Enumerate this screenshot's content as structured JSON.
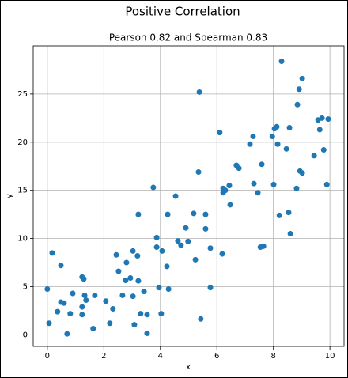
{
  "chart_data": {
    "type": "scatter",
    "title": "Positive Correlation",
    "subtitle": "Pearson 0.82 and Spearman 0.83",
    "xlabel": "x",
    "ylabel": "y",
    "color": "#1f77b4",
    "grid": true,
    "xlim": [
      -0.5,
      10.5
    ],
    "ylim": [
      -1.2,
      30
    ],
    "xticks": [
      0,
      2,
      4,
      6,
      8,
      10
    ],
    "yticks": [
      0,
      5,
      10,
      15,
      20,
      25
    ],
    "x": [
      0,
      0.06,
      0.17,
      0.36,
      0.48,
      0.48,
      0.59,
      0.7,
      0.81,
      0.9,
      1.23,
      1.29,
      1.23,
      1.23,
      1.32,
      1.37,
      1.62,
      1.68,
      2.07,
      2.21,
      2.32,
      2.44,
      2.52,
      2.66,
      2.77,
      2.8,
      2.94,
      3.03,
      3.03,
      3.08,
      3.19,
      3.22,
      3.22,
      3.3,
      3.42,
      3.53,
      3.53,
      3.75,
      3.87,
      3.87,
      3.95,
      4.03,
      4.06,
      4.23,
      4.26,
      4.29,
      4.54,
      4.62,
      4.73,
      4.9,
      4.98,
      5.18,
      5.24,
      5.38,
      5.35,
      5.43,
      5.6,
      5.6,
      5.77,
      5.77,
      6.1,
      6.19,
      6.22,
      6.22,
      6.3,
      6.44,
      6.47,
      6.69,
      6.78,
      7.17,
      7.28,
      7.31,
      7.45,
      7.54,
      7.65,
      7.59,
      7.96,
      8.01,
      8.04,
      8.12,
      8.15,
      8.21,
      8.29,
      8.46,
      8.54,
      8.57,
      8.6,
      8.82,
      8.85,
      8.91,
      8.94,
      9.02,
      9.02,
      9.44,
      9.58,
      9.64,
      9.72,
      9.78,
      9.89,
      9.94
    ],
    "y": [
      4.75,
      1.2,
      8.5,
      2.4,
      7.2,
      3.4,
      3.3,
      0.1,
      2.2,
      4.3,
      6.0,
      5.8,
      2.9,
      2.1,
      4.1,
      3.6,
      0.65,
      4.1,
      3.5,
      1.2,
      2.7,
      8.3,
      6.6,
      4.1,
      5.65,
      7.5,
      5.9,
      8.7,
      4.0,
      1.05,
      8.2,
      12.5,
      5.6,
      2.2,
      4.5,
      0.15,
      2.1,
      15.3,
      10.1,
      9.1,
      4.9,
      2.2,
      8.7,
      7.1,
      12.5,
      4.75,
      14.4,
      9.75,
      9.3,
      11.1,
      9.7,
      12.6,
      7.8,
      25.2,
      16.9,
      1.65,
      12.5,
      11.0,
      9.0,
      4.9,
      21.0,
      8.4,
      15.2,
      14.75,
      15.0,
      15.5,
      13.5,
      17.6,
      17.3,
      19.8,
      20.6,
      15.7,
      14.75,
      9.1,
      9.2,
      17.7,
      20.6,
      15.6,
      21.4,
      21.6,
      19.8,
      12.4,
      28.4,
      19.3,
      12.7,
      21.5,
      10.5,
      15.2,
      23.9,
      25.5,
      17.0,
      26.6,
      16.8,
      18.6,
      22.3,
      21.3,
      22.5,
      19.2,
      15.6,
      22.4
    ]
  }
}
